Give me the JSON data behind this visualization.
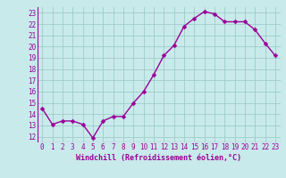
{
  "x": [
    0,
    1,
    2,
    3,
    4,
    5,
    6,
    7,
    8,
    9,
    10,
    11,
    12,
    13,
    14,
    15,
    16,
    17,
    18,
    19,
    20,
    21,
    22,
    23
  ],
  "y": [
    14.5,
    13.1,
    13.4,
    13.4,
    13.1,
    11.9,
    13.4,
    13.8,
    13.8,
    15.0,
    16.0,
    17.5,
    19.2,
    20.1,
    21.8,
    22.5,
    23.1,
    22.9,
    22.2,
    22.2,
    22.2,
    21.5,
    20.3,
    19.2
  ],
  "line_color": "#990099",
  "marker_color": "#990099",
  "bg_color": "#c8eaea",
  "grid_color": "#a0cccc",
  "xlabel": "Windchill (Refroidissement éolien,°C)",
  "xlim": [
    -0.5,
    23.5
  ],
  "ylim": [
    11.5,
    23.5
  ],
  "yticks": [
    12,
    13,
    14,
    15,
    16,
    17,
    18,
    19,
    20,
    21,
    22,
    23
  ],
  "xticks": [
    0,
    1,
    2,
    3,
    4,
    5,
    6,
    7,
    8,
    9,
    10,
    11,
    12,
    13,
    14,
    15,
    16,
    17,
    18,
    19,
    20,
    21,
    22,
    23
  ],
  "tick_fontsize": 5.5,
  "xlabel_fontsize": 6.0,
  "marker_size": 2.5,
  "line_width": 1.0
}
